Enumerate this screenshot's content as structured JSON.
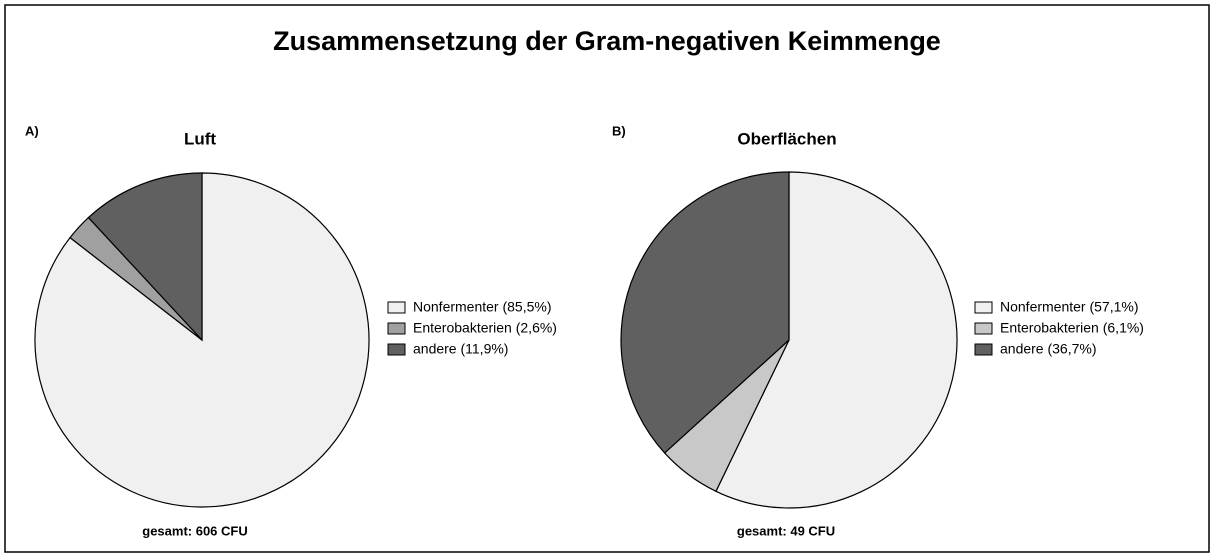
{
  "title": "Zusammensetzung der Gram-negativen Keimmenge",
  "chart_data": [
    {
      "type": "pie",
      "panel": "A)",
      "title": "Luft",
      "annotation": "gesamt: 606 CFU",
      "categories": [
        "Nonfermenter (85,5%)",
        "Enterobakterien (2,6%)",
        "andere (11,9%)"
      ],
      "values": [
        85.5,
        2.6,
        11.9
      ],
      "colors": [
        "#f0f0f0",
        "#a0a0a0",
        "#606060"
      ]
    },
    {
      "type": "pie",
      "panel": "B)",
      "title": "Oberflächen",
      "annotation": "gesamt: 49 CFU",
      "categories": [
        "Nonfermenter (57,1%)",
        "Enterobakterien (6,1%)",
        "andere (36,7%)"
      ],
      "values": [
        57.1,
        6.1,
        36.7
      ],
      "colors": [
        "#f0f0f0",
        "#c8c8c8",
        "#606060"
      ]
    }
  ]
}
